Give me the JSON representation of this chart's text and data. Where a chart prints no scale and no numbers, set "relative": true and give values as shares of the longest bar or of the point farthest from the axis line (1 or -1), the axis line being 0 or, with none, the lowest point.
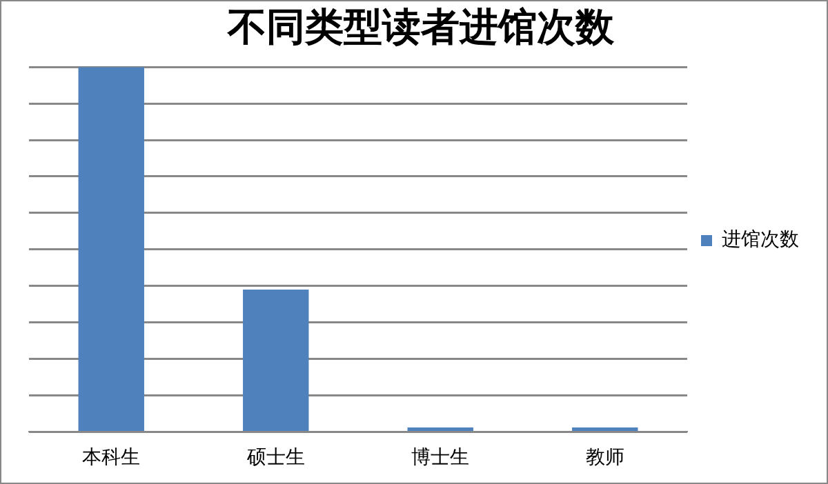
{
  "chart_data": {
    "type": "bar",
    "title": "不同类型读者进馆次数",
    "categories": [
      "本科生",
      "硕士生",
      "博士生",
      "教师"
    ],
    "relative": true,
    "series": [
      {
        "name": "进馆次数",
        "color": "#4f81bd",
        "values": [
          1,
          0.39,
          0.012,
          0.012
        ]
      }
    ],
    "grid": "y",
    "legend": "right"
  }
}
